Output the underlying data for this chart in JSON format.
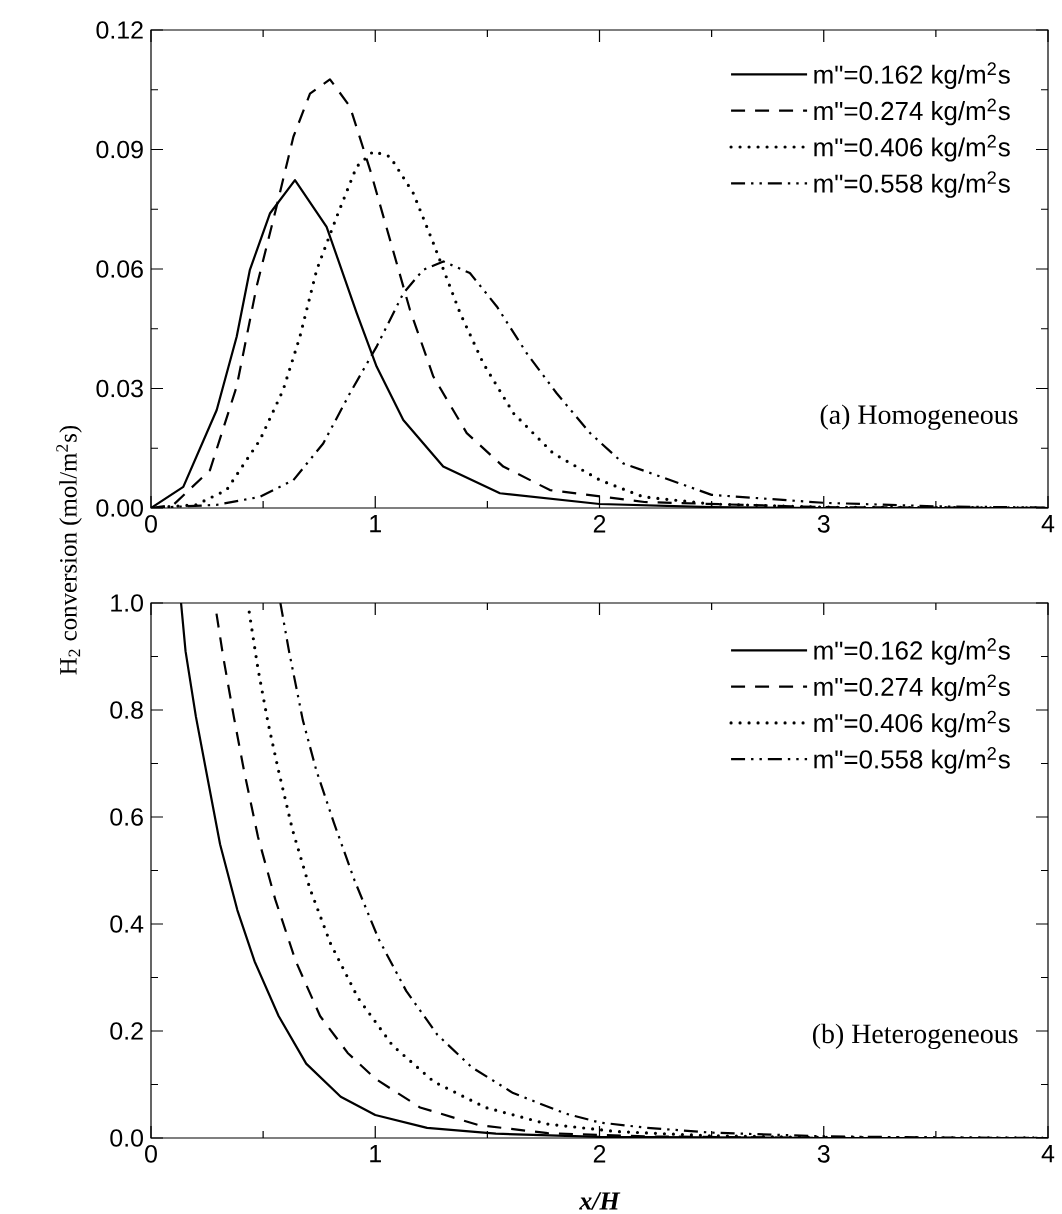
{
  "chart_data": [
    {
      "type": "line",
      "ylabel": "H$_{2}$ conversion (mol/m$^{2}$s)",
      "xlim": [
        0,
        4
      ],
      "ylim": [
        0,
        0.12
      ],
      "xticks": [
        0,
        1,
        2,
        3,
        4
      ],
      "yticks": [
        {
          "value": 0,
          "label": "0.00"
        },
        {
          "value": 0.03,
          "label": "0.03"
        },
        {
          "value": 0.06,
          "label": "0.06"
        },
        {
          "value": 0.09,
          "label": "0.09"
        },
        {
          "value": 0.12,
          "label": "0.12"
        }
      ],
      "legend": "top right",
      "annotations": [
        "(a) Homogeneous"
      ],
      "series": [
        {
          "name": "m\"=0.162 kg/m$^{2}$s",
          "color": "#000000",
          "line_style": "solid",
          "x": [
            0,
            0.144,
            0.293,
            0.382,
            0.441,
            0.531,
            0.642,
            0.783,
            0.917,
            1.006,
            1.125,
            1.303,
            1.556,
            2.0,
            2.5,
            3.0,
            4.0
          ],
          "values": [
            0,
            0.0053,
            0.0246,
            0.043,
            0.0598,
            0.074,
            0.0823,
            0.0706,
            0.049,
            0.0355,
            0.0221,
            0.0104,
            0.0037,
            0.001,
            0.0002,
            0,
            0
          ]
        },
        {
          "name": "m\"=0.274 kg/m$^{2}$s",
          "color": "#000000",
          "line_style": "dashed",
          "x": [
            0,
            0.1,
            0.263,
            0.382,
            0.471,
            0.56,
            0.635,
            0.709,
            0.798,
            0.887,
            0.977,
            1.066,
            1.155,
            1.259,
            1.408,
            1.571,
            1.779,
            2.2,
            3.0,
            4.0
          ],
          "values": [
            0,
            0.0008,
            0.0095,
            0.0305,
            0.0556,
            0.0757,
            0.0932,
            0.104,
            0.1076,
            0.1008,
            0.0849,
            0.0673,
            0.0497,
            0.033,
            0.0188,
            0.0104,
            0.0045,
            0.0015,
            0.0002,
            0
          ]
        },
        {
          "name": "m\"=0.406 kg/m$^{2}$s",
          "color": "#000000",
          "line_style": "dotted",
          "x": [
            0,
            0.2,
            0.337,
            0.486,
            0.589,
            0.664,
            0.739,
            0.828,
            0.917,
            0.991,
            1.066,
            1.17,
            1.259,
            1.378,
            1.482,
            1.616,
            1.794,
            2.002,
            2.195,
            2.5,
            3.0,
            4.0
          ],
          "values": [
            0,
            0.0008,
            0.0045,
            0.0171,
            0.0296,
            0.043,
            0.0598,
            0.0731,
            0.0857,
            0.0895,
            0.0882,
            0.079,
            0.0665,
            0.049,
            0.0363,
            0.0238,
            0.0137,
            0.007,
            0.0028,
            0.001,
            0.0002,
            0
          ]
        },
        {
          "name": "m\"=0.558 kg/m$^{2}$s",
          "color": "#000000",
          "line_style": "dashdotdotted",
          "x": [
            0,
            0.293,
            0.486,
            0.635,
            0.768,
            0.887,
            1.006,
            1.125,
            1.214,
            1.304,
            1.422,
            1.542,
            1.676,
            1.809,
            1.958,
            2.106,
            2.5,
            3.0,
            3.5,
            4.0
          ],
          "values": [
            0,
            0.0008,
            0.0028,
            0.007,
            0.0162,
            0.0288,
            0.0405,
            0.0539,
            0.0598,
            0.0619,
            0.059,
            0.0506,
            0.0388,
            0.0288,
            0.0188,
            0.0112,
            0.0033,
            0.0013,
            0.0004,
            0.0001
          ]
        }
      ]
    },
    {
      "type": "line",
      "xlabel": "x/H",
      "xlim": [
        0,
        4
      ],
      "ylim": [
        0,
        1.0
      ],
      "xticks": [
        0,
        1,
        2,
        3,
        4
      ],
      "yticks": [
        {
          "value": 0,
          "label": "0.0"
        },
        {
          "value": 0.2,
          "label": "0.2"
        },
        {
          "value": 0.4,
          "label": "0.4"
        },
        {
          "value": 0.6,
          "label": "0.6"
        },
        {
          "value": 0.8,
          "label": "0.8"
        },
        {
          "value": 1.0,
          "label": "1.0"
        }
      ],
      "legend": "top right",
      "annotations": [
        "(b) Heterogeneous"
      ],
      "series": [
        {
          "name": "m\"=0.162 kg/m$^{2}$s",
          "color": "#000000",
          "line_style": "solid",
          "x": [
            0.134,
            0.154,
            0.2,
            0.246,
            0.308,
            0.385,
            0.462,
            0.569,
            0.692,
            0.846,
            1.0,
            1.231,
            1.538,
            2.0,
            3.0,
            4.0
          ],
          "values": [
            1.0,
            0.91,
            0.788,
            0.686,
            0.549,
            0.426,
            0.33,
            0.228,
            0.139,
            0.077,
            0.043,
            0.019,
            0.008,
            0.002,
            0,
            0
          ]
        },
        {
          "name": "m\"=0.274 kg/m$^{2}$s",
          "color": "#000000",
          "line_style": "dashed",
          "x": [
            0.292,
            0.323,
            0.369,
            0.415,
            0.477,
            0.554,
            0.646,
            0.754,
            0.877,
            1.0,
            1.2,
            1.462,
            1.769,
            2.2,
            3.0,
            4.0
          ],
          "values": [
            0.98,
            0.897,
            0.788,
            0.686,
            0.563,
            0.446,
            0.33,
            0.228,
            0.159,
            0.111,
            0.057,
            0.024,
            0.009,
            0.003,
            0,
            0
          ]
        },
        {
          "name": "m\"=0.406 kg/m$^{2}$s",
          "color": "#000000",
          "line_style": "dotted",
          "x": [
            0.438,
            0.477,
            0.523,
            0.569,
            0.631,
            0.708,
            0.8,
            0.923,
            1.077,
            1.262,
            1.492,
            1.769,
            2.077,
            2.5,
            3.0,
            4.0
          ],
          "values": [
            0.983,
            0.877,
            0.774,
            0.686,
            0.576,
            0.467,
            0.364,
            0.262,
            0.173,
            0.105,
            0.057,
            0.026,
            0.012,
            0.004,
            0.001,
            0
          ]
        },
        {
          "name": "m\"=0.558 kg/m$^{2}$s",
          "color": "#000000",
          "line_style": "dashdotdotted",
          "x": [
            0.577,
            0.615,
            0.677,
            0.738,
            0.815,
            0.908,
            1.015,
            1.138,
            1.277,
            1.431,
            1.615,
            1.846,
            2.0,
            2.212,
            2.5,
            3.0,
            3.5,
            4.0
          ],
          "values": [
            1.0,
            0.911,
            0.781,
            0.686,
            0.59,
            0.481,
            0.372,
            0.275,
            0.193,
            0.132,
            0.084,
            0.046,
            0.029,
            0.019,
            0.01,
            0.003,
            0.001,
            0
          ]
        }
      ]
    }
  ]
}
